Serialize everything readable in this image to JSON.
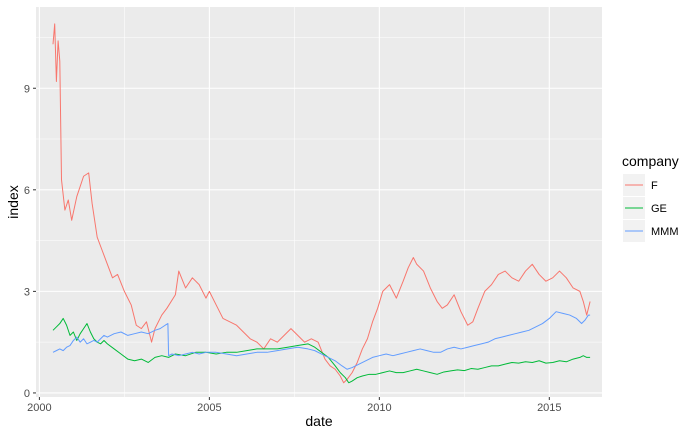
{
  "chart_data": {
    "type": "line",
    "xlabel": "date",
    "ylabel": "index",
    "xlim": [
      1999.9,
      2016.55
    ],
    "ylim": [
      -0.12,
      11.4
    ],
    "x_ticks": [
      2000,
      2005,
      2010,
      2015
    ],
    "x_tick_labels": [
      "2000",
      "2005",
      "2010",
      "2015"
    ],
    "y_ticks": [
      0,
      3,
      6,
      9
    ],
    "y_tick_labels": [
      "0",
      "3",
      "6",
      "9"
    ],
    "grid": true,
    "legend": {
      "title": "company",
      "position": "right"
    },
    "series": [
      {
        "name": "F",
        "color": "#F8766D",
        "points": [
          [
            2000.4,
            10.3
          ],
          [
            2000.45,
            10.9
          ],
          [
            2000.5,
            9.2
          ],
          [
            2000.55,
            10.4
          ],
          [
            2000.6,
            9.8
          ],
          [
            2000.65,
            6.3
          ],
          [
            2000.75,
            5.4
          ],
          [
            2000.85,
            5.7
          ],
          [
            2000.95,
            5.1
          ],
          [
            2001.1,
            5.8
          ],
          [
            2001.3,
            6.4
          ],
          [
            2001.45,
            6.5
          ],
          [
            2001.55,
            5.6
          ],
          [
            2001.7,
            4.6
          ],
          [
            2001.85,
            4.2
          ],
          [
            2002.0,
            3.8
          ],
          [
            2002.15,
            3.4
          ],
          [
            2002.3,
            3.5
          ],
          [
            2002.5,
            3.0
          ],
          [
            2002.7,
            2.6
          ],
          [
            2002.85,
            2.0
          ],
          [
            2003.0,
            1.9
          ],
          [
            2003.15,
            2.1
          ],
          [
            2003.3,
            1.5
          ],
          [
            2003.4,
            1.9
          ],
          [
            2003.6,
            2.3
          ],
          [
            2003.75,
            2.5
          ],
          [
            2004.0,
            2.9
          ],
          [
            2004.1,
            3.6
          ],
          [
            2004.3,
            3.1
          ],
          [
            2004.5,
            3.4
          ],
          [
            2004.7,
            3.2
          ],
          [
            2004.9,
            2.8
          ],
          [
            2005.0,
            3.0
          ],
          [
            2005.2,
            2.6
          ],
          [
            2005.4,
            2.2
          ],
          [
            2005.6,
            2.1
          ],
          [
            2005.8,
            2.0
          ],
          [
            2006.0,
            1.8
          ],
          [
            2006.2,
            1.6
          ],
          [
            2006.4,
            1.5
          ],
          [
            2006.6,
            1.3
          ],
          [
            2006.8,
            1.6
          ],
          [
            2007.0,
            1.5
          ],
          [
            2007.2,
            1.7
          ],
          [
            2007.4,
            1.9
          ],
          [
            2007.6,
            1.7
          ],
          [
            2007.8,
            1.5
          ],
          [
            2008.0,
            1.6
          ],
          [
            2008.2,
            1.5
          ],
          [
            2008.4,
            1.0
          ],
          [
            2008.55,
            0.8
          ],
          [
            2008.7,
            0.7
          ],
          [
            2008.85,
            0.5
          ],
          [
            2008.95,
            0.3
          ],
          [
            2009.05,
            0.4
          ],
          [
            2009.2,
            0.6
          ],
          [
            2009.35,
            0.9
          ],
          [
            2009.5,
            1.3
          ],
          [
            2009.65,
            1.6
          ],
          [
            2009.8,
            2.1
          ],
          [
            2009.95,
            2.5
          ],
          [
            2010.1,
            3.0
          ],
          [
            2010.3,
            3.2
          ],
          [
            2010.5,
            2.8
          ],
          [
            2010.7,
            3.3
          ],
          [
            2010.85,
            3.7
          ],
          [
            2011.0,
            4.0
          ],
          [
            2011.1,
            3.8
          ],
          [
            2011.3,
            3.6
          ],
          [
            2011.5,
            3.1
          ],
          [
            2011.7,
            2.7
          ],
          [
            2011.85,
            2.5
          ],
          [
            2012.0,
            2.6
          ],
          [
            2012.2,
            2.9
          ],
          [
            2012.4,
            2.4
          ],
          [
            2012.6,
            2.0
          ],
          [
            2012.75,
            2.1
          ],
          [
            2012.9,
            2.5
          ],
          [
            2013.1,
            3.0
          ],
          [
            2013.3,
            3.2
          ],
          [
            2013.5,
            3.5
          ],
          [
            2013.7,
            3.6
          ],
          [
            2013.9,
            3.4
          ],
          [
            2014.1,
            3.3
          ],
          [
            2014.3,
            3.6
          ],
          [
            2014.5,
            3.8
          ],
          [
            2014.7,
            3.5
          ],
          [
            2014.9,
            3.3
          ],
          [
            2015.1,
            3.4
          ],
          [
            2015.3,
            3.6
          ],
          [
            2015.5,
            3.4
          ],
          [
            2015.7,
            3.1
          ],
          [
            2015.9,
            3.0
          ],
          [
            2016.0,
            2.7
          ],
          [
            2016.1,
            2.3
          ],
          [
            2016.2,
            2.7
          ]
        ]
      },
      {
        "name": "GE",
        "color": "#00BA38",
        "points": [
          [
            2000.4,
            1.85
          ],
          [
            2000.5,
            1.95
          ],
          [
            2000.6,
            2.05
          ],
          [
            2000.7,
            2.2
          ],
          [
            2000.8,
            2.0
          ],
          [
            2000.9,
            1.7
          ],
          [
            2001.0,
            1.8
          ],
          [
            2001.1,
            1.55
          ],
          [
            2001.2,
            1.75
          ],
          [
            2001.3,
            1.9
          ],
          [
            2001.4,
            2.05
          ],
          [
            2001.5,
            1.8
          ],
          [
            2001.6,
            1.6
          ],
          [
            2001.7,
            1.5
          ],
          [
            2001.8,
            1.45
          ],
          [
            2001.9,
            1.55
          ],
          [
            2002.0,
            1.45
          ],
          [
            2002.2,
            1.3
          ],
          [
            2002.4,
            1.15
          ],
          [
            2002.6,
            1.0
          ],
          [
            2002.8,
            0.95
          ],
          [
            2003.0,
            1.0
          ],
          [
            2003.2,
            0.9
          ],
          [
            2003.4,
            1.05
          ],
          [
            2003.6,
            1.1
          ],
          [
            2003.8,
            1.05
          ],
          [
            2004.0,
            1.15
          ],
          [
            2004.3,
            1.1
          ],
          [
            2004.6,
            1.2
          ],
          [
            2004.9,
            1.2
          ],
          [
            2005.2,
            1.15
          ],
          [
            2005.5,
            1.2
          ],
          [
            2005.8,
            1.2
          ],
          [
            2006.1,
            1.25
          ],
          [
            2006.4,
            1.3
          ],
          [
            2006.7,
            1.3
          ],
          [
            2007.0,
            1.3
          ],
          [
            2007.3,
            1.35
          ],
          [
            2007.6,
            1.4
          ],
          [
            2007.9,
            1.45
          ],
          [
            2008.1,
            1.35
          ],
          [
            2008.3,
            1.2
          ],
          [
            2008.5,
            1.05
          ],
          [
            2008.7,
            0.8
          ],
          [
            2008.85,
            0.6
          ],
          [
            2009.0,
            0.45
          ],
          [
            2009.1,
            0.3
          ],
          [
            2009.2,
            0.35
          ],
          [
            2009.35,
            0.45
          ],
          [
            2009.5,
            0.5
          ],
          [
            2009.7,
            0.55
          ],
          [
            2009.9,
            0.55
          ],
          [
            2010.1,
            0.6
          ],
          [
            2010.3,
            0.65
          ],
          [
            2010.5,
            0.6
          ],
          [
            2010.7,
            0.6
          ],
          [
            2010.9,
            0.65
          ],
          [
            2011.1,
            0.7
          ],
          [
            2011.3,
            0.65
          ],
          [
            2011.5,
            0.6
          ],
          [
            2011.7,
            0.55
          ],
          [
            2011.9,
            0.62
          ],
          [
            2012.1,
            0.65
          ],
          [
            2012.3,
            0.68
          ],
          [
            2012.5,
            0.66
          ],
          [
            2012.7,
            0.72
          ],
          [
            2012.9,
            0.7
          ],
          [
            2013.1,
            0.75
          ],
          [
            2013.3,
            0.8
          ],
          [
            2013.5,
            0.8
          ],
          [
            2013.7,
            0.85
          ],
          [
            2013.9,
            0.9
          ],
          [
            2014.1,
            0.88
          ],
          [
            2014.3,
            0.92
          ],
          [
            2014.5,
            0.9
          ],
          [
            2014.7,
            0.95
          ],
          [
            2014.9,
            0.88
          ],
          [
            2015.1,
            0.9
          ],
          [
            2015.3,
            0.95
          ],
          [
            2015.5,
            0.92
          ],
          [
            2015.7,
            1.0
          ],
          [
            2015.9,
            1.05
          ],
          [
            2016.0,
            1.1
          ],
          [
            2016.1,
            1.05
          ],
          [
            2016.2,
            1.05
          ]
        ]
      },
      {
        "name": "MMM",
        "color": "#619CFF",
        "points": [
          [
            2000.4,
            1.2
          ],
          [
            2000.5,
            1.25
          ],
          [
            2000.6,
            1.3
          ],
          [
            2000.7,
            1.25
          ],
          [
            2000.8,
            1.35
          ],
          [
            2000.9,
            1.4
          ],
          [
            2001.0,
            1.55
          ],
          [
            2001.1,
            1.65
          ],
          [
            2001.2,
            1.5
          ],
          [
            2001.3,
            1.6
          ],
          [
            2001.4,
            1.45
          ],
          [
            2001.5,
            1.5
          ],
          [
            2001.6,
            1.55
          ],
          [
            2001.7,
            1.5
          ],
          [
            2001.8,
            1.6
          ],
          [
            2001.9,
            1.7
          ],
          [
            2002.0,
            1.65
          ],
          [
            2002.2,
            1.75
          ],
          [
            2002.4,
            1.8
          ],
          [
            2002.6,
            1.7
          ],
          [
            2002.8,
            1.75
          ],
          [
            2003.0,
            1.8
          ],
          [
            2003.2,
            1.75
          ],
          [
            2003.4,
            1.85
          ],
          [
            2003.55,
            1.9
          ],
          [
            2003.7,
            2.0
          ],
          [
            2003.78,
            2.05
          ],
          [
            2003.8,
            1.1
          ],
          [
            2003.9,
            1.15
          ],
          [
            2004.1,
            1.1
          ],
          [
            2004.3,
            1.15
          ],
          [
            2004.5,
            1.2
          ],
          [
            2004.7,
            1.15
          ],
          [
            2004.9,
            1.2
          ],
          [
            2005.2,
            1.2
          ],
          [
            2005.5,
            1.15
          ],
          [
            2005.8,
            1.1
          ],
          [
            2006.1,
            1.15
          ],
          [
            2006.4,
            1.2
          ],
          [
            2006.7,
            1.2
          ],
          [
            2007.0,
            1.25
          ],
          [
            2007.3,
            1.3
          ],
          [
            2007.6,
            1.35
          ],
          [
            2007.9,
            1.3
          ],
          [
            2008.1,
            1.25
          ],
          [
            2008.3,
            1.15
          ],
          [
            2008.5,
            1.05
          ],
          [
            2008.7,
            0.95
          ],
          [
            2008.9,
            0.8
          ],
          [
            2009.05,
            0.7
          ],
          [
            2009.2,
            0.75
          ],
          [
            2009.4,
            0.85
          ],
          [
            2009.6,
            0.95
          ],
          [
            2009.8,
            1.05
          ],
          [
            2010.0,
            1.1
          ],
          [
            2010.2,
            1.15
          ],
          [
            2010.4,
            1.1
          ],
          [
            2010.6,
            1.15
          ],
          [
            2010.8,
            1.2
          ],
          [
            2011.0,
            1.25
          ],
          [
            2011.2,
            1.3
          ],
          [
            2011.4,
            1.25
          ],
          [
            2011.6,
            1.2
          ],
          [
            2011.8,
            1.2
          ],
          [
            2012.0,
            1.3
          ],
          [
            2012.2,
            1.35
          ],
          [
            2012.4,
            1.3
          ],
          [
            2012.6,
            1.35
          ],
          [
            2012.8,
            1.4
          ],
          [
            2013.0,
            1.45
          ],
          [
            2013.2,
            1.5
          ],
          [
            2013.4,
            1.6
          ],
          [
            2013.6,
            1.65
          ],
          [
            2013.8,
            1.7
          ],
          [
            2014.0,
            1.75
          ],
          [
            2014.2,
            1.8
          ],
          [
            2014.4,
            1.85
          ],
          [
            2014.6,
            1.95
          ],
          [
            2014.8,
            2.05
          ],
          [
            2015.0,
            2.2
          ],
          [
            2015.2,
            2.4
          ],
          [
            2015.4,
            2.35
          ],
          [
            2015.6,
            2.3
          ],
          [
            2015.8,
            2.2
          ],
          [
            2015.95,
            2.05
          ],
          [
            2016.05,
            2.15
          ],
          [
            2016.15,
            2.3
          ],
          [
            2016.2,
            2.3
          ]
        ]
      }
    ]
  }
}
